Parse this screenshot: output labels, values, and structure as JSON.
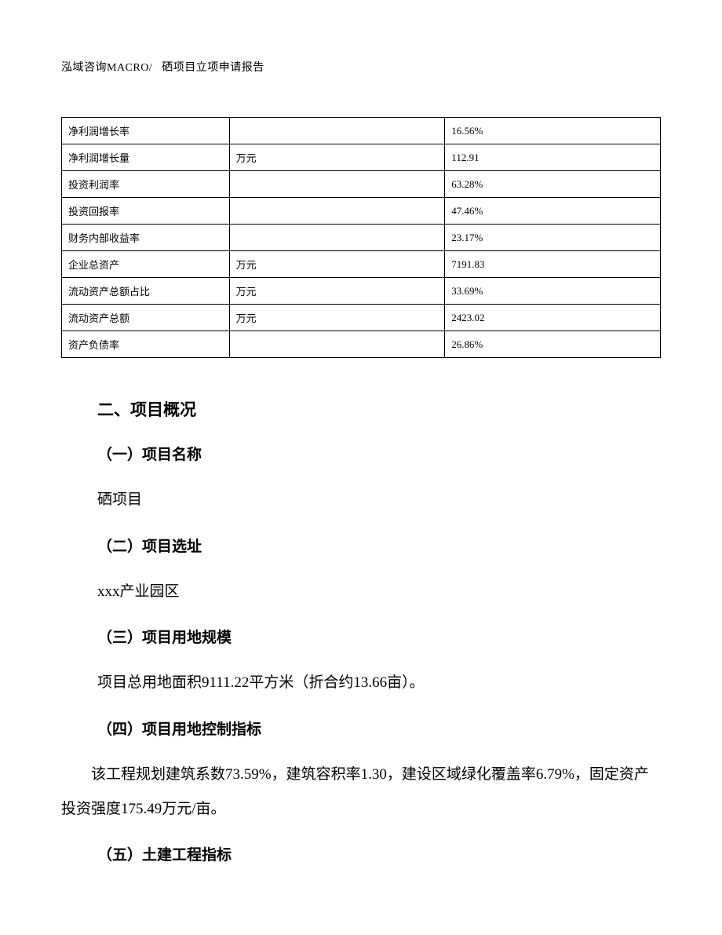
{
  "header": {
    "company": "泓域咨询MACRO/",
    "doc_title": "硒项目立项申请报告"
  },
  "table": {
    "border_color": "#000000",
    "background_color": "#ffffff",
    "font_size": 13,
    "rows": [
      {
        "label": "净利润增长率",
        "unit": "",
        "value": "16.56%"
      },
      {
        "label": "净利润增长量",
        "unit": "万元",
        "value": "112.91"
      },
      {
        "label": "投资利润率",
        "unit": "",
        "value": "63.28%"
      },
      {
        "label": "投资回报率",
        "unit": "",
        "value": "47.46%"
      },
      {
        "label": "财务内部收益率",
        "unit": "",
        "value": "23.17%"
      },
      {
        "label": "企业总资产",
        "unit": "万元",
        "value": "7191.83"
      },
      {
        "label": "流动资产总额占比",
        "unit": "万元",
        "value": "33.69%"
      },
      {
        "label": "流动资产总额",
        "unit": "万元",
        "value": "2423.02"
      },
      {
        "label": "资产负债率",
        "unit": "",
        "value": "26.86%"
      }
    ]
  },
  "sections": {
    "main_title": "二、项目概况",
    "s1_title": "（一）项目名称",
    "s1_body": "硒项目",
    "s2_title": "（二）项目选址",
    "s2_body": "xxx产业园区",
    "s3_title": "（三）项目用地规模",
    "s3_body": "项目总用地面积9111.22平方米（折合约13.66亩）。",
    "s4_title": "（四）项目用地控制指标",
    "s4_body": "该工程规划建筑系数73.59%，建筑容积率1.30，建设区域绿化覆盖率6.79%，固定资产投资强度175.49万元/亩。",
    "s5_title": "（五）土建工程指标"
  },
  "typography": {
    "body_font": "SimSun",
    "heading_font": "SimHei",
    "heading_fontsize": 21,
    "subheading_fontsize": 19,
    "body_fontsize": 19,
    "text_color": "#000000",
    "page_bg": "#ffffff"
  }
}
